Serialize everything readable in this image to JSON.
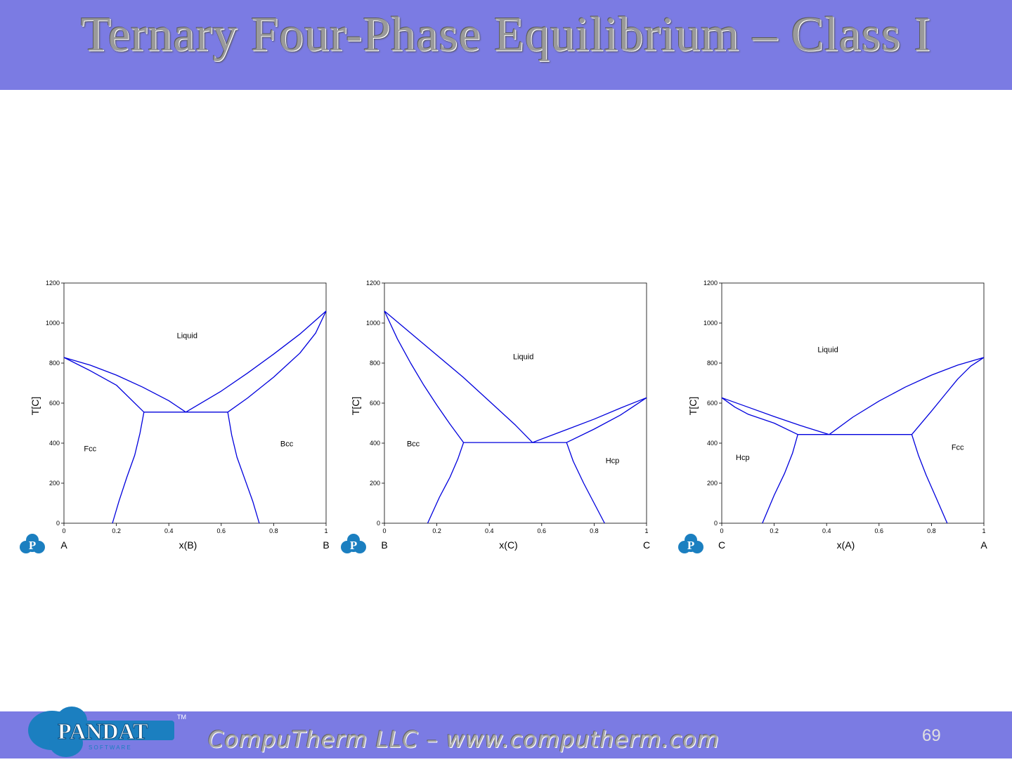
{
  "header": {
    "title": "Ternary Four-Phase Equilibrium – Class I"
  },
  "footer": {
    "company_text": "CompuTherm LLC – www.computherm.com",
    "page_number": "69",
    "logo": {
      "text": "PANDAT",
      "sub_text": "S O F T W A R E",
      "tm": "TM"
    }
  },
  "colors": {
    "bar": "#7b7be3",
    "curve": "#0000dd",
    "logo_blue": "#1b7fc0"
  },
  "chart_data": [
    {
      "type": "line",
      "xlabel": "x(B)",
      "ylabel": "T[C]",
      "left_label": "A",
      "right_label": "B",
      "xlim": [
        0,
        1
      ],
      "ylim": [
        0,
        1200
      ],
      "x_ticks": [
        "0",
        "0.2",
        "0.4",
        "0.6",
        "0.8",
        "1"
      ],
      "y_ticks": [
        "0",
        "200",
        "400",
        "600",
        "800",
        "1000",
        "1200"
      ],
      "regions": [
        {
          "label": "Liquid",
          "x": 0.47,
          "y": 925
        },
        {
          "label": "Fcc",
          "x": 0.1,
          "y": 360
        },
        {
          "label": "Bcc",
          "x": 0.85,
          "y": 385
        }
      ],
      "series": [
        {
          "points": [
            [
              0,
              828
            ],
            [
              0.1,
              790
            ],
            [
              0.2,
              740
            ],
            [
              0.3,
              680
            ],
            [
              0.4,
              612
            ],
            [
              0.465,
              555
            ]
          ]
        },
        {
          "points": [
            [
              0,
              828
            ],
            [
              0.1,
              762
            ],
            [
              0.2,
              690
            ],
            [
              0.305,
              555
            ]
          ]
        },
        {
          "points": [
            [
              0.305,
              555
            ],
            [
              0.625,
              555
            ]
          ]
        },
        {
          "points": [
            [
              0.465,
              555
            ],
            [
              0.6,
              660
            ],
            [
              0.7,
              750
            ],
            [
              0.8,
              845
            ],
            [
              0.9,
              945
            ],
            [
              1,
              1060
            ]
          ]
        },
        {
          "points": [
            [
              0.625,
              555
            ],
            [
              0.7,
              625
            ],
            [
              0.8,
              730
            ],
            [
              0.9,
              850
            ],
            [
              0.96,
              950
            ],
            [
              1,
              1060
            ]
          ]
        },
        {
          "points": [
            [
              0.305,
              555
            ],
            [
              0.29,
              450
            ],
            [
              0.27,
              340
            ],
            [
              0.24,
              230
            ],
            [
              0.21,
              110
            ],
            [
              0.185,
              0
            ]
          ]
        },
        {
          "points": [
            [
              0.625,
              555
            ],
            [
              0.64,
              440
            ],
            [
              0.66,
              330
            ],
            [
              0.69,
              220
            ],
            [
              0.72,
              110
            ],
            [
              0.745,
              0
            ]
          ]
        }
      ]
    },
    {
      "type": "line",
      "xlabel": "x(C)",
      "ylabel": "T[C]",
      "left_label": "B",
      "right_label": "C",
      "xlim": [
        0,
        1
      ],
      "ylim": [
        0,
        1200
      ],
      "x_ticks": [
        "0",
        "0.2",
        "0.4",
        "0.6",
        "0.8",
        "1"
      ],
      "y_ticks": [
        "0",
        "200",
        "400",
        "600",
        "800",
        "1000",
        "1200"
      ],
      "regions": [
        {
          "label": "Liquid",
          "x": 0.53,
          "y": 820
        },
        {
          "label": "Bcc",
          "x": 0.11,
          "y": 385
        },
        {
          "label": "Hcp",
          "x": 0.87,
          "y": 300
        }
      ],
      "series": [
        {
          "points": [
            [
              0,
              1060
            ],
            [
              0.1,
              950
            ],
            [
              0.2,
              840
            ],
            [
              0.3,
              730
            ],
            [
              0.4,
              610
            ],
            [
              0.5,
              490
            ],
            [
              0.565,
              403
            ]
          ]
        },
        {
          "points": [
            [
              0,
              1060
            ],
            [
              0.05,
              920
            ],
            [
              0.1,
              800
            ],
            [
              0.15,
              690
            ],
            [
              0.2,
              590
            ],
            [
              0.25,
              495
            ],
            [
              0.302,
              403
            ]
          ]
        },
        {
          "points": [
            [
              0.302,
              403
            ],
            [
              0.695,
              403
            ]
          ]
        },
        {
          "points": [
            [
              0.565,
              403
            ],
            [
              0.7,
              470
            ],
            [
              0.8,
              520
            ],
            [
              0.9,
              575
            ],
            [
              1,
              627
            ]
          ]
        },
        {
          "points": [
            [
              0.695,
              403
            ],
            [
              0.8,
              470
            ],
            [
              0.9,
              540
            ],
            [
              1,
              627
            ]
          ]
        },
        {
          "points": [
            [
              0.302,
              403
            ],
            [
              0.28,
              320
            ],
            [
              0.25,
              230
            ],
            [
              0.21,
              130
            ],
            [
              0.165,
              0
            ]
          ]
        },
        {
          "points": [
            [
              0.695,
              403
            ],
            [
              0.72,
              310
            ],
            [
              0.76,
              200
            ],
            [
              0.8,
              100
            ],
            [
              0.84,
              0
            ]
          ]
        }
      ]
    },
    {
      "type": "line",
      "xlabel": "x(A)",
      "ylabel": "T[C]",
      "left_label": "C",
      "right_label": "A",
      "xlim": [
        0,
        1
      ],
      "ylim": [
        0,
        1200
      ],
      "x_ticks": [
        "0",
        "0.2",
        "0.4",
        "0.6",
        "0.8",
        "1"
      ],
      "y_ticks": [
        "0",
        "200",
        "400",
        "600",
        "800",
        "1000",
        "1200"
      ],
      "regions": [
        {
          "label": "Liquid",
          "x": 0.405,
          "y": 855
        },
        {
          "label": "Hcp",
          "x": 0.08,
          "y": 315
        },
        {
          "label": "Fcc",
          "x": 0.9,
          "y": 367
        }
      ],
      "series": [
        {
          "points": [
            [
              0,
              627
            ],
            [
              0.1,
              580
            ],
            [
              0.2,
              533
            ],
            [
              0.3,
              488
            ],
            [
              0.41,
              443
            ]
          ]
        },
        {
          "points": [
            [
              0,
              627
            ],
            [
              0.05,
              580
            ],
            [
              0.1,
              545
            ],
            [
              0.2,
              500
            ],
            [
              0.29,
              443
            ]
          ]
        },
        {
          "points": [
            [
              0.29,
              443
            ],
            [
              0.725,
              443
            ]
          ]
        },
        {
          "points": [
            [
              0.41,
              443
            ],
            [
              0.5,
              530
            ],
            [
              0.6,
              610
            ],
            [
              0.7,
              680
            ],
            [
              0.8,
              740
            ],
            [
              0.9,
              790
            ],
            [
              1,
              828
            ]
          ]
        },
        {
          "points": [
            [
              0.725,
              443
            ],
            [
              0.8,
              560
            ],
            [
              0.85,
              640
            ],
            [
              0.9,
              720
            ],
            [
              0.95,
              785
            ],
            [
              1,
              828
            ]
          ]
        },
        {
          "points": [
            [
              0.29,
              443
            ],
            [
              0.27,
              350
            ],
            [
              0.24,
              250
            ],
            [
              0.2,
              140
            ],
            [
              0.155,
              0
            ]
          ]
        },
        {
          "points": [
            [
              0.725,
              443
            ],
            [
              0.75,
              340
            ],
            [
              0.78,
              240
            ],
            [
              0.82,
              120
            ],
            [
              0.86,
              0
            ]
          ]
        }
      ]
    }
  ]
}
